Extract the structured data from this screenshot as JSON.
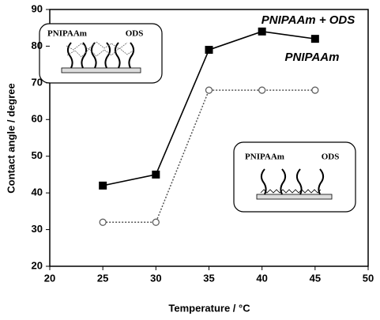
{
  "chart_data": {
    "type": "line",
    "xlabel": "Temperature / °C",
    "ylabel": "Contact angle / degree",
    "x": [
      25,
      30,
      35,
      40,
      45
    ],
    "series": [
      {
        "name": "PNIPAAm + ODS",
        "color": "#000000",
        "marker": "square",
        "linestyle": "solid",
        "values": [
          42,
          45,
          79,
          84,
          82
        ]
      },
      {
        "name": "PNIPAAm",
        "color": "#555555",
        "marker": "circle",
        "linestyle": "dotted",
        "values": [
          32,
          32,
          68,
          68,
          68
        ]
      }
    ],
    "xlim": [
      20,
      50
    ],
    "xticks": [
      20,
      25,
      30,
      35,
      40,
      45,
      50
    ],
    "ylim": [
      20,
      90
    ],
    "yticks": [
      20,
      30,
      40,
      50,
      60,
      70,
      80,
      90
    ],
    "grid": false,
    "insets": [
      {
        "labels": [
          "PNIPAAm",
          "ODS"
        ]
      },
      {
        "labels": [
          "PNIPAAm",
          "ODS"
        ]
      }
    ]
  }
}
